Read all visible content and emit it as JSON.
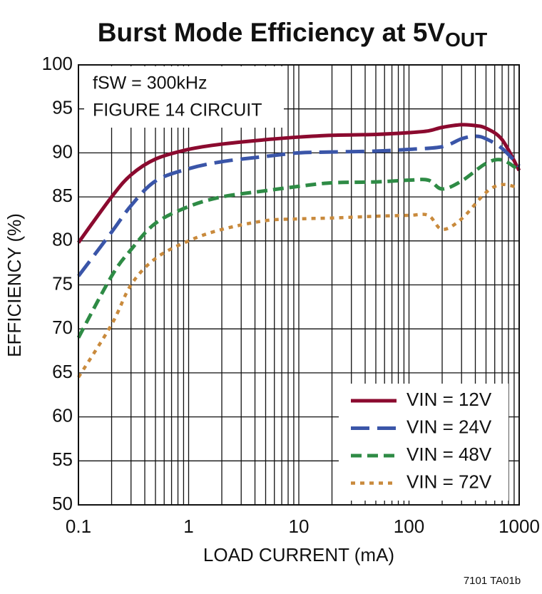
{
  "chart_data": {
    "type": "line",
    "title": "Burst Mode Efficiency at 5V",
    "title_subscript": "OUT",
    "annotation": [
      "fSW = 300kHz",
      "FIGURE 14 CIRCUIT"
    ],
    "xlabel": "LOAD CURRENT (mA)",
    "ylabel": "EFFICIENCY (%)",
    "footnote": "7101 TA01b",
    "xscale": "log",
    "grid": true,
    "legend": "lower right",
    "xlim": [
      0.1,
      1000
    ],
    "xticks": [
      0.1,
      1,
      10,
      100,
      1000
    ],
    "xminorticks": [
      0.2,
      0.3,
      0.4,
      0.5,
      0.6,
      0.7,
      0.8,
      0.9,
      2,
      3,
      4,
      5,
      6,
      7,
      8,
      9,
      20,
      30,
      40,
      50,
      60,
      70,
      80,
      90,
      200,
      300,
      400,
      500,
      600,
      700,
      800,
      900
    ],
    "ylim": [
      50,
      100
    ],
    "yticks": [
      50,
      55,
      60,
      65,
      70,
      75,
      80,
      85,
      90,
      95,
      100
    ],
    "series": [
      {
        "name": "VIN = 12V",
        "color": "#8b0a2f",
        "dash": "solid",
        "x": [
          0.1,
          0.2,
          0.3,
          0.5,
          1,
          2,
          5,
          10,
          20,
          50,
          100,
          150,
          200,
          300,
          400,
          500,
          700,
          1000
        ],
        "values": [
          79.8,
          85,
          87.5,
          89.3,
          90.4,
          91,
          91.5,
          91.8,
          92,
          92.1,
          92.3,
          92.5,
          92.9,
          93.2,
          93.1,
          92.8,
          91.5,
          88
        ]
      },
      {
        "name": "VIN = 24V",
        "color": "#3a55a8",
        "dash": "long",
        "x": [
          0.1,
          0.2,
          0.3,
          0.5,
          1,
          2,
          5,
          10,
          20,
          50,
          100,
          200,
          300,
          400,
          500,
          700,
          1000
        ],
        "values": [
          76,
          81,
          84,
          86.8,
          88.2,
          89,
          89.6,
          90,
          90.1,
          90.2,
          90.4,
          90.7,
          91.6,
          91.9,
          91.6,
          90.5,
          88.5
        ]
      },
      {
        "name": "VIN = 48V",
        "color": "#2e8b45",
        "dash": "short",
        "x": [
          0.1,
          0.2,
          0.3,
          0.5,
          1,
          2,
          5,
          10,
          20,
          50,
          100,
          150,
          200,
          300,
          500,
          700,
          1000
        ],
        "values": [
          69,
          76,
          79,
          82,
          83.9,
          85,
          85.7,
          86.2,
          86.6,
          86.7,
          86.9,
          86.9,
          85.9,
          86.8,
          88.8,
          89.2,
          88
        ]
      },
      {
        "name": "VIN = 72V",
        "color": "#c98a3c",
        "dash": "dot",
        "x": [
          0.1,
          0.2,
          0.3,
          0.5,
          1,
          2,
          5,
          10,
          20,
          50,
          100,
          150,
          200,
          300,
          500,
          700,
          1000
        ],
        "values": [
          64.5,
          70.5,
          75,
          78,
          80,
          81.3,
          82.3,
          82.5,
          82.6,
          82.8,
          82.9,
          82.9,
          81.3,
          82.5,
          85.5,
          86.4,
          86
        ]
      }
    ]
  }
}
